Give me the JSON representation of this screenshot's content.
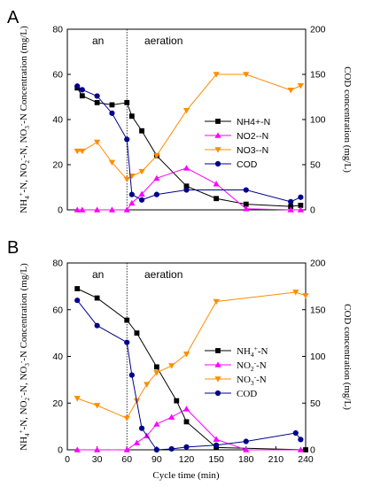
{
  "chart_data": [
    {
      "type": "line",
      "panel_label": "A",
      "phase_labels": [
        "an",
        "aeration"
      ],
      "phase_boundary": 60,
      "xlim": [
        0,
        240
      ],
      "x_show_ticks": false,
      "x_ticks": [],
      "ylim": [
        0,
        80
      ],
      "y_ticks": [
        0,
        20,
        40,
        60,
        80
      ],
      "y2lim": [
        0,
        200
      ],
      "y2_ticks": [
        0,
        50,
        100,
        150,
        200
      ],
      "ylabel": "NH4+-N, NO2--N, NO3--N Concentration (mg/L)",
      "y2label": "COD concentration (mg/L)",
      "legend_position": "right-middle",
      "series": [
        {
          "name": "NH4+-N",
          "axis": "left",
          "color": "#000000",
          "marker": "square",
          "x": [
            10,
            15,
            30,
            45,
            60,
            65,
            75,
            90,
            120,
            150,
            180,
            225,
            235
          ],
          "y": [
            54,
            50.5,
            47.5,
            46.5,
            47.5,
            41.5,
            35,
            24,
            10.5,
            5,
            2.5,
            1.5,
            2
          ]
        },
        {
          "name": "NO2--N",
          "axis": "left",
          "color": "#ff00ff",
          "marker": "triangle-up",
          "x": [
            10,
            15,
            30,
            45,
            60,
            65,
            75,
            90,
            120,
            150,
            180,
            225,
            235
          ],
          "y": [
            0,
            0,
            0,
            0,
            0,
            3,
            7,
            14,
            18.5,
            11.5,
            0.5,
            0,
            0
          ]
        },
        {
          "name": "NO3--N",
          "axis": "left",
          "color": "#ff8c00",
          "marker": "triangle-down",
          "x": [
            10,
            15,
            30,
            45,
            60,
            65,
            75,
            90,
            120,
            150,
            180,
            225,
            235
          ],
          "y": [
            26,
            26,
            30,
            21,
            13.5,
            15,
            17,
            24,
            44,
            60,
            60,
            53,
            55
          ]
        },
        {
          "name": "COD",
          "axis": "right",
          "color": "#00008b",
          "marker": "circle",
          "x": [
            10,
            15,
            30,
            45,
            60,
            65,
            75,
            90,
            120,
            180,
            225,
            235
          ],
          "y": [
            137,
            133,
            126,
            107,
            78,
            17,
            11,
            17,
            22,
            22,
            9,
            14
          ]
        }
      ]
    },
    {
      "type": "line",
      "panel_label": "B",
      "phase_labels": [
        "an",
        "aeration"
      ],
      "phase_boundary": 60,
      "xlabel": "Cycle time (min)",
      "xlim": [
        0,
        240
      ],
      "x_show_ticks": true,
      "x_ticks": [
        0,
        30,
        60,
        90,
        120,
        150,
        180,
        210,
        240
      ],
      "ylim": [
        0,
        80
      ],
      "y_ticks": [
        0,
        20,
        40,
        60,
        80
      ],
      "y2lim": [
        0,
        200
      ],
      "y2_ticks": [
        0,
        50,
        100,
        150,
        200
      ],
      "ylabel": "NH4+-N, NO2--N, NO3--N Concentration (mg/L)",
      "y2label": "COD concentration (mg/L)",
      "legend_position": "right-middle",
      "series": [
        {
          "name": "NH4+-N",
          "axis": "left",
          "color": "#000000",
          "marker": "square",
          "x": [
            10,
            30,
            60,
            70,
            90,
            110,
            120,
            150,
            240
          ],
          "y": [
            69,
            65,
            55.5,
            50,
            35.5,
            21,
            12,
            1,
            0
          ]
        },
        {
          "name": "NO2--N",
          "axis": "left",
          "color": "#ff00ff",
          "marker": "triangle-up",
          "x": [
            10,
            30,
            60,
            70,
            80,
            90,
            105,
            120,
            150,
            180,
            235
          ],
          "y": [
            0,
            0,
            0,
            3,
            6,
            11,
            14,
            17.5,
            4.5,
            0,
            0
          ]
        },
        {
          "name": "NO3--N",
          "axis": "left",
          "color": "#ff8c00",
          "marker": "triangle-down",
          "x": [
            10,
            30,
            60,
            70,
            80,
            90,
            105,
            120,
            150,
            230,
            240
          ],
          "y": [
            22,
            19,
            13.5,
            21,
            28,
            33,
            36,
            41,
            63.5,
            67.5,
            66
          ]
        },
        {
          "name": "COD",
          "axis": "right",
          "color": "#00008b",
          "marker": "circle",
          "x": [
            10,
            30,
            60,
            65,
            75,
            90,
            105,
            120,
            150,
            180,
            230,
            235
          ],
          "y": [
            160,
            133,
            115,
            80,
            23,
            0,
            1,
            3,
            5,
            9,
            18,
            11
          ]
        }
      ]
    }
  ]
}
